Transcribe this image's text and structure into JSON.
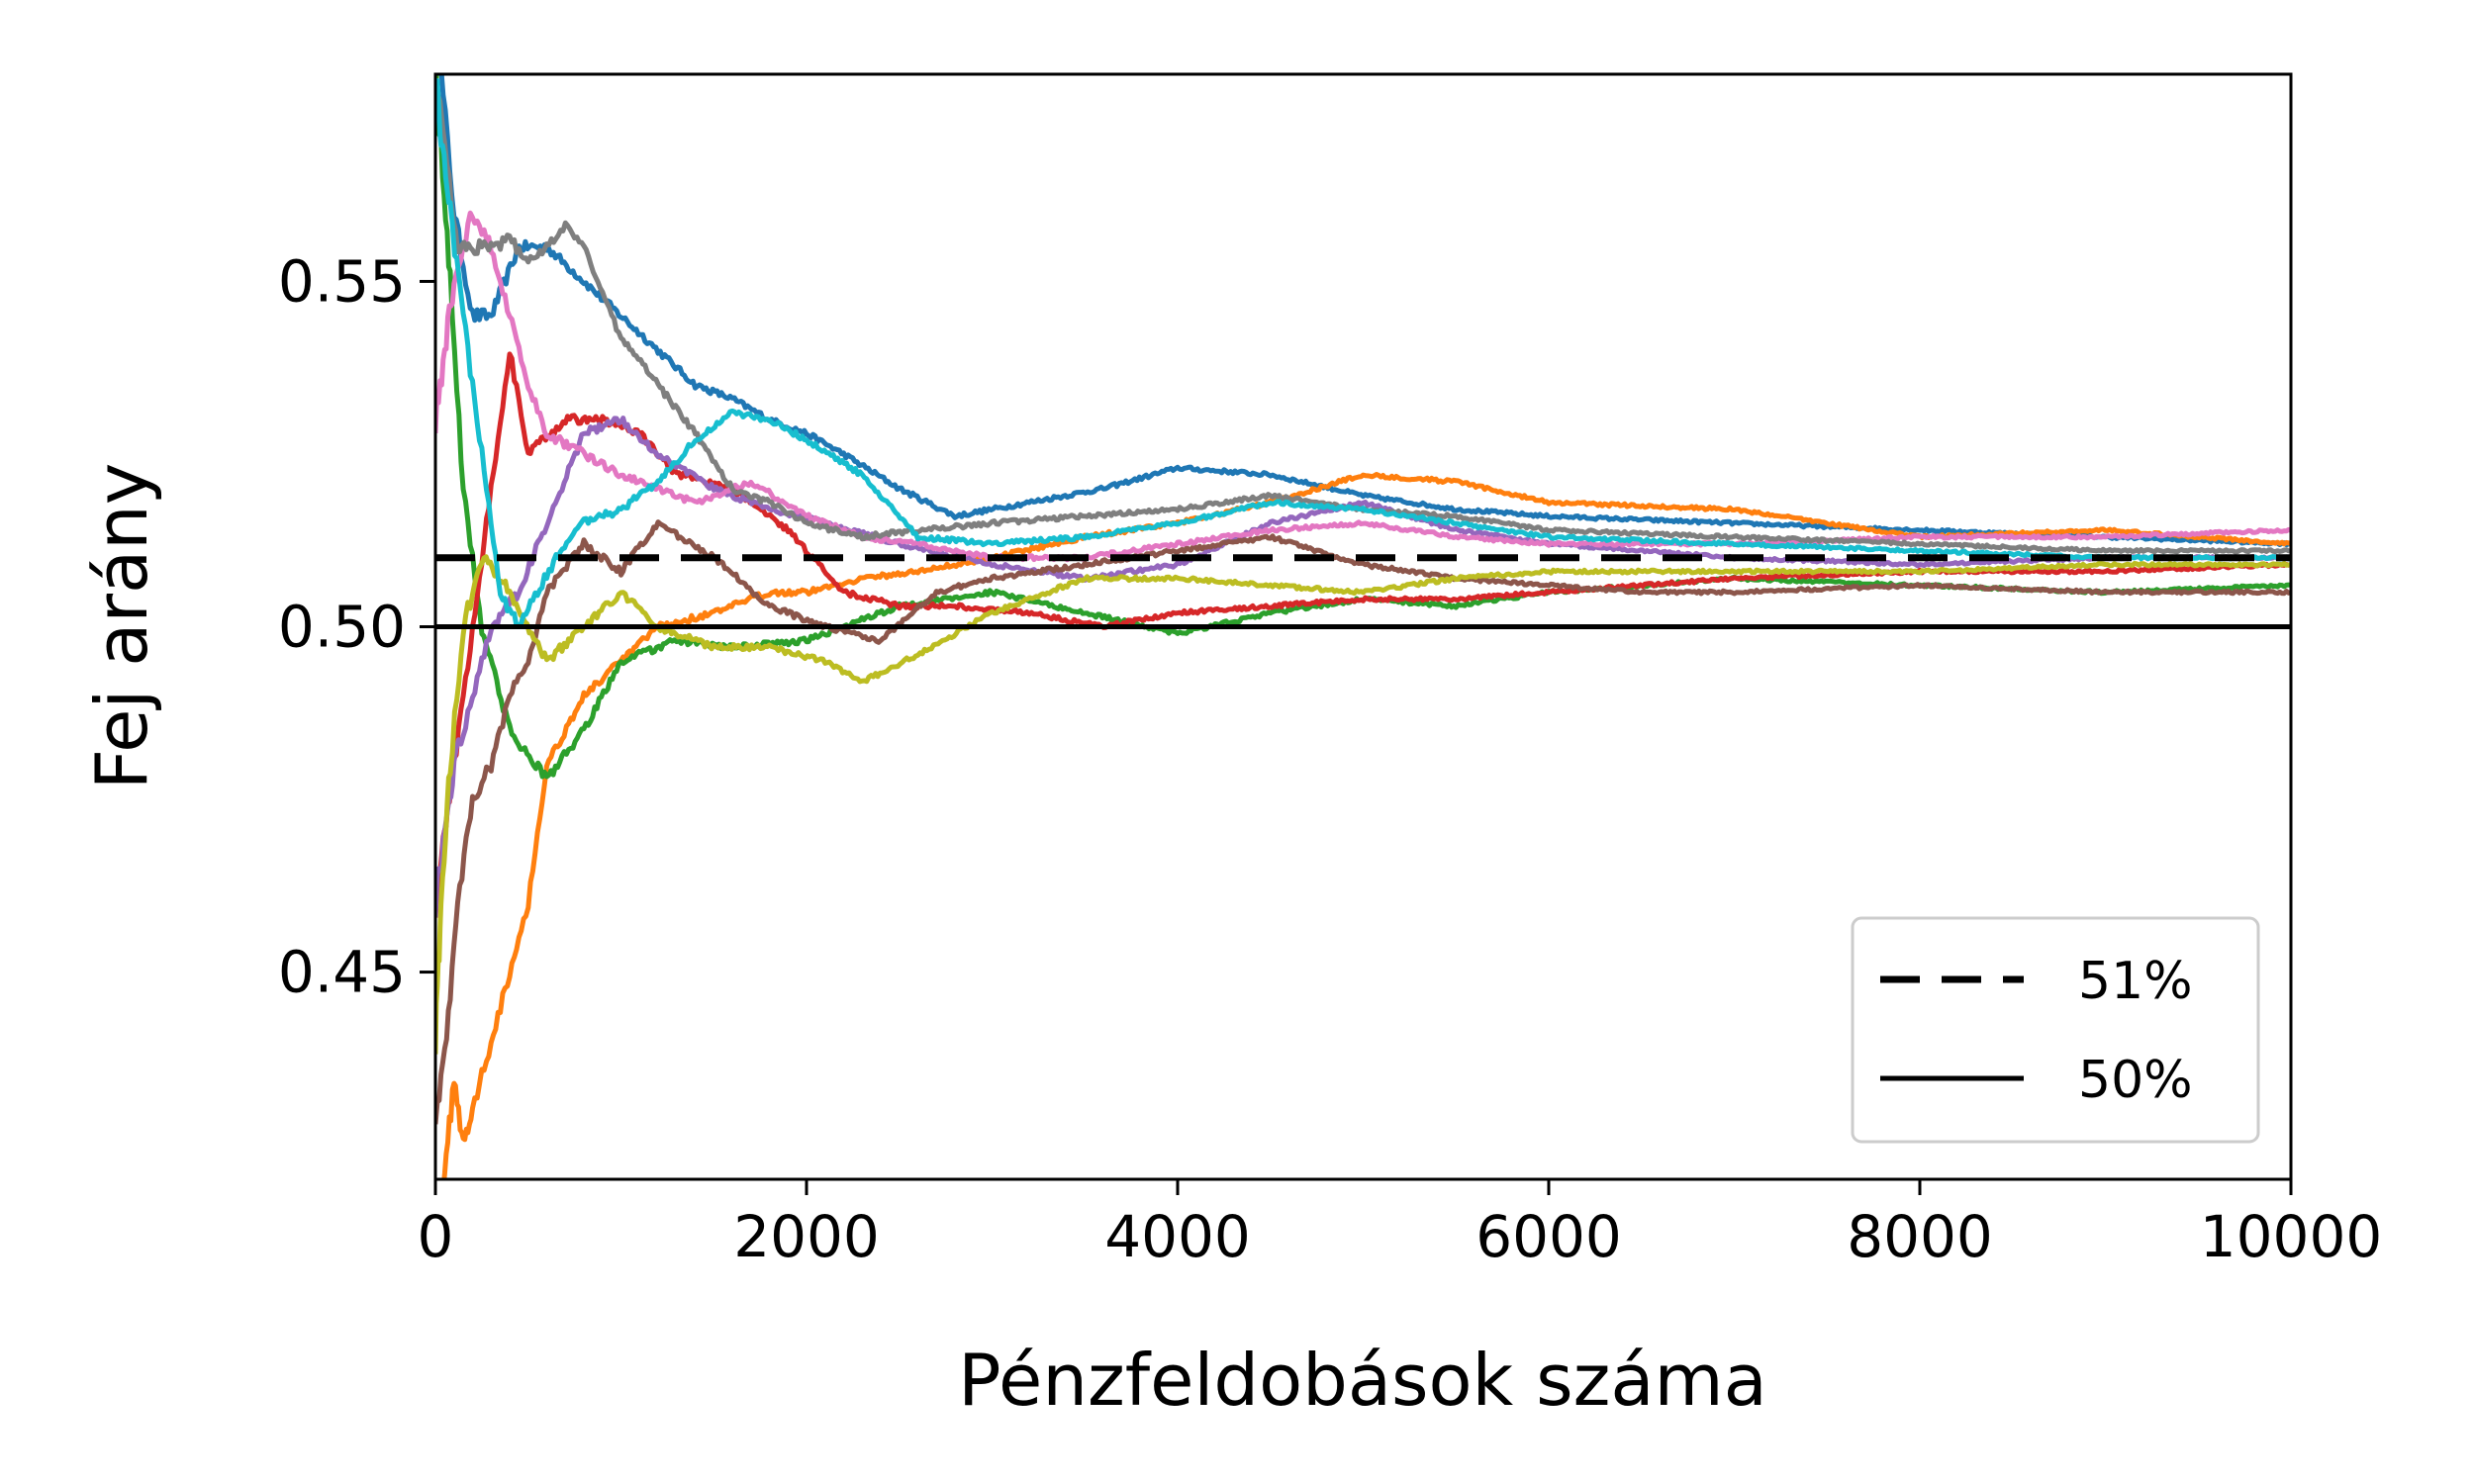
{
  "chart_data": {
    "type": "line",
    "title": "",
    "xlabel": "Pénzfeldobások száma",
    "ylabel": "Fej arány",
    "xlim": [
      0,
      10000
    ],
    "ylim": [
      0.42,
      0.58
    ],
    "x_ticks": [
      0,
      2000,
      4000,
      6000,
      8000,
      10000
    ],
    "x_tick_labels": [
      "0",
      "2000",
      "4000",
      "6000",
      "8000",
      "10000"
    ],
    "y_ticks": [
      0.45,
      0.5,
      0.55
    ],
    "y_tick_labels": [
      "0.45",
      "0.50",
      "0.55"
    ],
    "grid": false,
    "legend_position": "lower-right",
    "reference_lines": [
      {
        "name": "51%",
        "y": 0.51,
        "style": "dashed",
        "color": "#000000"
      },
      {
        "name": "50%",
        "y": 0.5,
        "style": "solid",
        "color": "#000000"
      }
    ],
    "series": [
      {
        "color": "#1f77b4",
        "x": [
          0,
          30,
          100,
          200,
          300,
          450,
          600,
          800,
          1000,
          1200,
          1400,
          1600,
          1800,
          2000,
          2200,
          2500,
          2800,
          3200,
          3600,
          4000,
          4500,
          5000,
          5500,
          6000,
          7000,
          8000,
          9000,
          10000
        ],
        "y": [
          0.6,
          0.58,
          0.56,
          0.545,
          0.545,
          0.555,
          0.555,
          0.55,
          0.545,
          0.54,
          0.535,
          0.533,
          0.53,
          0.528,
          0.525,
          0.52,
          0.516,
          0.518,
          0.52,
          0.523,
          0.522,
          0.519,
          0.517,
          0.516,
          0.515,
          0.514,
          0.513,
          0.512
        ]
      },
      {
        "color": "#ff7f0e",
        "x": [
          0,
          50,
          100,
          150,
          200,
          300,
          400,
          500,
          600,
          800,
          1000,
          1200,
          1500,
          1800,
          2000,
          2300,
          2600,
          3000,
          3500,
          4000,
          4500,
          5000,
          5500,
          6000,
          7000,
          8000,
          9000,
          10000
        ],
        "y": [
          0.4,
          0.42,
          0.435,
          0.425,
          0.43,
          0.44,
          0.45,
          0.46,
          0.48,
          0.49,
          0.495,
          0.5,
          0.502,
          0.505,
          0.505,
          0.507,
          0.508,
          0.51,
          0.513,
          0.515,
          0.518,
          0.522,
          0.521,
          0.518,
          0.517,
          0.513,
          0.514,
          0.512
        ]
      },
      {
        "color": "#2ca02c",
        "x": [
          0,
          30,
          80,
          150,
          250,
          400,
          600,
          800,
          1000,
          1300,
          1600,
          2000,
          2500,
          3000,
          3500,
          4000,
          4500,
          5000,
          5500,
          6000,
          7000,
          8000,
          9000,
          10000
        ],
        "y": [
          0.58,
          0.57,
          0.55,
          0.52,
          0.5,
          0.485,
          0.478,
          0.485,
          0.495,
          0.498,
          0.497,
          0.498,
          0.503,
          0.505,
          0.502,
          0.499,
          0.502,
          0.504,
          0.503,
          0.505,
          0.507,
          0.506,
          0.505,
          0.506
        ]
      },
      {
        "color": "#d62728",
        "x": [
          0,
          50,
          100,
          200,
          300,
          400,
          500,
          700,
          900,
          1100,
          1300,
          1600,
          1900,
          2200,
          2500,
          2800,
          3200,
          3600,
          4000,
          4500,
          5000,
          5500,
          6000,
          7000,
          8000,
          9000,
          10000
        ],
        "y": [
          0.46,
          0.47,
          0.48,
          0.5,
          0.52,
          0.54,
          0.525,
          0.53,
          0.53,
          0.528,
          0.522,
          0.52,
          0.514,
          0.505,
          0.503,
          0.503,
          0.502,
          0.5,
          0.502,
          0.503,
          0.504,
          0.504,
          0.505,
          0.507,
          0.508,
          0.508,
          0.509
        ]
      },
      {
        "color": "#9467bd",
        "x": [
          0,
          50,
          100,
          200,
          300,
          450,
          600,
          800,
          1000,
          1200,
          1500,
          1800,
          2100,
          2500,
          3000,
          3500,
          4000,
          4500,
          5000,
          5500,
          6000,
          7000,
          8000,
          9000,
          10000
        ],
        "y": [
          0.46,
          0.47,
          0.48,
          0.49,
          0.5,
          0.505,
          0.515,
          0.528,
          0.53,
          0.525,
          0.52,
          0.517,
          0.515,
          0.512,
          0.509,
          0.507,
          0.509,
          0.515,
          0.518,
          0.514,
          0.512,
          0.51,
          0.509,
          0.51,
          0.51
        ]
      },
      {
        "color": "#8c564b",
        "x": [
          0,
          60,
          120,
          200,
          300,
          400,
          500,
          600,
          800,
          1000,
          1200,
          1500,
          1800,
          2100,
          2400,
          2700,
          3000,
          3500,
          4000,
          4500,
          5000,
          5500,
          6000,
          6500,
          7000,
          8000,
          9000,
          10000
        ],
        "y": [
          0.43,
          0.44,
          0.46,
          0.475,
          0.48,
          0.49,
          0.495,
          0.505,
          0.512,
          0.508,
          0.515,
          0.51,
          0.503,
          0.5,
          0.498,
          0.505,
          0.507,
          0.509,
          0.511,
          0.513,
          0.509,
          0.507,
          0.506,
          0.505,
          0.505,
          0.506,
          0.505,
          0.505
        ]
      },
      {
        "color": "#e377c2",
        "x": [
          0,
          50,
          100,
          200,
          300,
          400,
          500,
          600,
          800,
          1000,
          1200,
          1400,
          1700,
          2000,
          2300,
          2600,
          3000,
          3500,
          4000,
          4500,
          5000,
          5500,
          6000,
          7000,
          8000,
          9000,
          10000
        ],
        "y": [
          0.53,
          0.54,
          0.55,
          0.56,
          0.555,
          0.545,
          0.535,
          0.528,
          0.525,
          0.522,
          0.52,
          0.518,
          0.521,
          0.516,
          0.513,
          0.512,
          0.51,
          0.51,
          0.512,
          0.514,
          0.515,
          0.513,
          0.512,
          0.512,
          0.513,
          0.513,
          0.514
        ]
      },
      {
        "color": "#7f7f7f",
        "x": [
          0,
          50,
          120,
          200,
          300,
          400,
          500,
          600,
          700,
          800,
          900,
          1000,
          1200,
          1400,
          1600,
          1800,
          2000,
          2300,
          2600,
          3000,
          3500,
          4000,
          4500,
          5000,
          5500,
          6000,
          7000,
          8000,
          9000,
          10000
        ],
        "y": [
          0.58,
          0.57,
          0.555,
          0.555,
          0.555,
          0.556,
          0.553,
          0.555,
          0.558,
          0.555,
          0.548,
          0.542,
          0.535,
          0.528,
          0.52,
          0.518,
          0.515,
          0.513,
          0.514,
          0.515,
          0.516,
          0.517,
          0.519,
          0.517,
          0.516,
          0.514,
          0.513,
          0.512,
          0.511,
          0.511
        ]
      },
      {
        "color": "#bcbd22",
        "x": [
          0,
          30,
          80,
          150,
          250,
          400,
          600,
          800,
          1000,
          1200,
          1500,
          1800,
          2100,
          2300,
          2600,
          3000,
          3500,
          4000,
          4500,
          5000,
          5500,
          6000,
          7000,
          8000,
          9000,
          10000
        ],
        "y": [
          0.44,
          0.46,
          0.48,
          0.5,
          0.51,
          0.505,
          0.495,
          0.5,
          0.505,
          0.5,
          0.497,
          0.497,
          0.495,
          0.492,
          0.496,
          0.502,
          0.507,
          0.507,
          0.506,
          0.505,
          0.507,
          0.508,
          0.508,
          0.508,
          0.509,
          0.509
        ]
      },
      {
        "color": "#17becf",
        "x": [
          0,
          30,
          80,
          150,
          250,
          350,
          450,
          550,
          650,
          800,
          1000,
          1200,
          1400,
          1600,
          1800,
          2000,
          2300,
          2600,
          3000,
          3500,
          4000,
          4500,
          5000,
          5500,
          6000,
          7000,
          8000,
          9000,
          10000
        ],
        "y": [
          0.58,
          0.57,
          0.56,
          0.545,
          0.525,
          0.505,
          0.5,
          0.505,
          0.51,
          0.515,
          0.517,
          0.521,
          0.527,
          0.531,
          0.53,
          0.527,
          0.522,
          0.513,
          0.512,
          0.513,
          0.515,
          0.518,
          0.517,
          0.515,
          0.513,
          0.512,
          0.511,
          0.51,
          0.51
        ]
      }
    ]
  }
}
